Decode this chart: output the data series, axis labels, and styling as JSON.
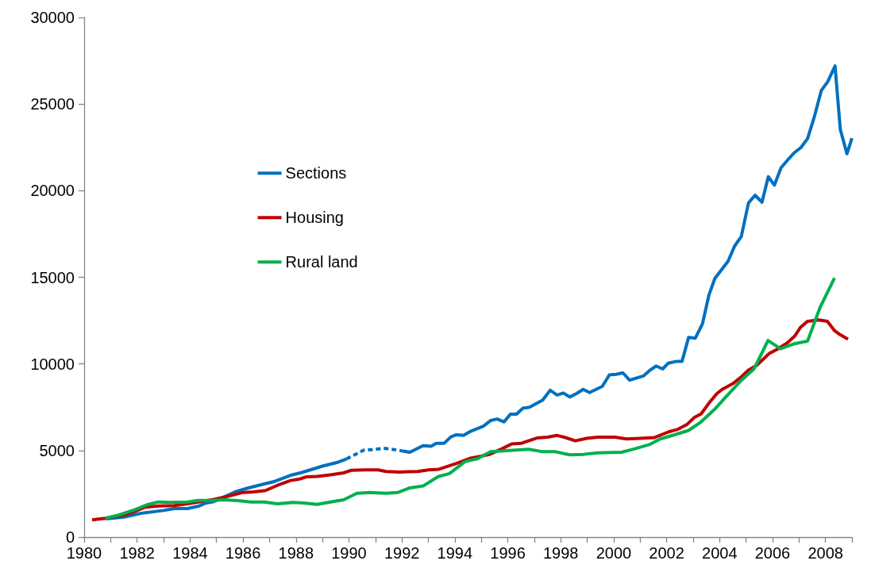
{
  "chart_data": {
    "type": "line",
    "xlim": [
      1980,
      2009
    ],
    "ylim": [
      0,
      30000
    ],
    "xticks": [
      1980,
      {
        "value": 1981,
        "label": null
      },
      1982,
      {
        "value": 1983,
        "label": null
      },
      1984,
      {
        "value": 1985,
        "label": null
      },
      1986,
      {
        "value": 1987,
        "label": null
      },
      1988,
      {
        "value": 1989,
        "label": null
      },
      1990,
      {
        "value": 1991,
        "label": null
      },
      1992,
      {
        "value": 1993,
        "label": null
      },
      1994,
      {
        "value": 1995,
        "label": null
      },
      1996,
      {
        "value": 1997,
        "label": null
      },
      1998,
      {
        "value": 1999,
        "label": null
      },
      2000,
      {
        "value": 2001,
        "label": null
      },
      2002,
      {
        "value": 2003,
        "label": null
      },
      2004,
      {
        "value": 2005,
        "label": null
      },
      2006,
      {
        "value": 2007,
        "label": null
      },
      2008,
      {
        "value": 2009,
        "label": null
      }
    ],
    "yticks": [
      0,
      5000,
      10000,
      15000,
      20000,
      25000,
      30000
    ],
    "grid": false,
    "legend": "top left",
    "marker": "none",
    "series": [
      {
        "name": "Sections",
        "color": "#0070c0",
        "line_style": "solid",
        "x": [
          1980.8,
          1981.5,
          1982.2,
          1983.0,
          1983.4,
          1983.9,
          1984.35,
          1984.6,
          1984.9,
          1985.7,
          1986.2,
          1986.8,
          1987.2,
          1987.8,
          1988.2,
          1989.0,
          1989.6,
          1989.9
        ],
        "values": [
          1050,
          1160,
          1390,
          1540,
          1650,
          1650,
          1800,
          1970,
          2050,
          2610,
          2840,
          3070,
          3220,
          3570,
          3720,
          4100,
          4330,
          4510
        ]
      },
      {
        "color": "#0070c0",
        "line_style": "dashed",
        "x": [
          1989.9,
          1990.2,
          1990.55,
          1990.9,
          1991.3,
          1991.6,
          1992.0
        ],
        "values": [
          4510,
          4740,
          5020,
          5050,
          5130,
          5080,
          4980
        ]
      },
      {
        "color": "#0070c0",
        "line_style": "solid",
        "x": [
          1992.0,
          1992.3,
          1992.8,
          1993.1,
          1993.3,
          1993.6,
          1993.85,
          1994.06,
          1994.33,
          1994.6,
          1995.08,
          1995.35,
          1995.6,
          1995.86,
          1996.1,
          1996.33,
          1996.57,
          1996.82,
          1997.32,
          1997.6,
          1997.86,
          1998.1,
          1998.34,
          1998.6,
          1998.85,
          1999.09,
          1999.57,
          1999.84,
          2000.1,
          2000.35,
          2000.6,
          2001.12,
          2001.34,
          2001.6,
          2001.85,
          2002.06,
          2002.35,
          2002.58,
          2002.83,
          2003.08,
          2003.35,
          2003.6,
          2003.82,
          2004.32,
          2004.57,
          2004.82,
          2005.09,
          2005.34,
          2005.6,
          2005.84,
          2006.07,
          2006.32,
          2006.57,
          2006.82,
          2007.07,
          2007.32,
          2007.57,
          2007.84,
          2008.09,
          2008.36,
          2008.56,
          2008.81,
          2009.0
        ],
        "values": [
          4980,
          4900,
          5280,
          5240,
          5420,
          5420,
          5790,
          5910,
          5870,
          6110,
          6410,
          6730,
          6820,
          6650,
          7100,
          7100,
          7440,
          7500,
          7910,
          8480,
          8200,
          8320,
          8090,
          8290,
          8530,
          8350,
          8700,
          9370,
          9400,
          9480,
          9060,
          9300,
          9600,
          9880,
          9710,
          10040,
          10140,
          10140,
          11530,
          11480,
          12300,
          13990,
          14930,
          15930,
          16810,
          17350,
          19290,
          19740,
          19330,
          20810,
          20320,
          21320,
          21770,
          22190,
          22490,
          23000,
          24220,
          25780,
          26310,
          27200,
          23530,
          22130,
          23030
        ]
      },
      {
        "name": "Housing",
        "color": "#c00000",
        "line_style": "solid",
        "x": [
          1980.3,
          1980.8,
          1981.5,
          1981.9,
          1982.3,
          1982.8,
          1983.4,
          1983.9,
          1984.4,
          1984.9,
          1985.4,
          1986.0,
          1986.4,
          1986.85,
          1987.3,
          1987.8,
          1988.1,
          1988.4,
          1988.8,
          1989.3,
          1989.8,
          1990.1,
          1990.6,
          1991.1,
          1991.4,
          1991.9,
          1992.6,
          1993.0,
          1993.4,
          1994.06,
          1994.6,
          1995.3,
          1995.78,
          1996.15,
          1996.52,
          1997.1,
          1997.5,
          1997.86,
          1998.13,
          1998.55,
          1998.98,
          1999.4,
          2000.05,
          2000.48,
          2001.0,
          2001.55,
          2002.08,
          2002.4,
          2002.78,
          2003.04,
          2003.3,
          2003.63,
          2003.9,
          2004.1,
          2004.5,
          2004.8,
          2005.08,
          2005.4,
          2005.6,
          2005.88,
          2006.15,
          2006.57,
          2006.84,
          2007.05,
          2007.32,
          2007.75,
          2008.07,
          2008.34,
          2008.55,
          2008.85
        ],
        "values": [
          1000,
          1090,
          1270,
          1470,
          1730,
          1800,
          1820,
          1920,
          2050,
          2180,
          2350,
          2580,
          2610,
          2690,
          2990,
          3270,
          3340,
          3480,
          3500,
          3600,
          3710,
          3860,
          3880,
          3880,
          3790,
          3760,
          3790,
          3880,
          3920,
          4250,
          4560,
          4770,
          5100,
          5380,
          5420,
          5720,
          5770,
          5870,
          5770,
          5560,
          5700,
          5770,
          5770,
          5670,
          5700,
          5750,
          6080,
          6210,
          6520,
          6900,
          7110,
          7800,
          8290,
          8530,
          8860,
          9220,
          9630,
          9920,
          10200,
          10610,
          10820,
          11230,
          11610,
          12100,
          12460,
          12540,
          12460,
          11920,
          11690,
          11430
        ]
      },
      {
        "name": "Rural land",
        "color": "#00b050",
        "line_style": "solid",
        "x": [
          1980.8,
          1981.3,
          1981.9,
          1982.4,
          1982.8,
          1983.3,
          1983.9,
          1984.3,
          1984.8,
          1985.3,
          1985.8,
          1986.3,
          1986.8,
          1987.3,
          1987.9,
          1988.3,
          1988.8,
          1989.3,
          1989.8,
          1990.3,
          1990.8,
          1991.4,
          1991.85,
          1992.3,
          1992.8,
          1993.37,
          1993.8,
          1994.38,
          1994.87,
          1995.35,
          1996.2,
          1996.79,
          1997.32,
          1997.8,
          1998.34,
          1998.87,
          1999.4,
          2000.3,
          2000.8,
          2001.34,
          2001.76,
          2002.3,
          2002.83,
          2003.3,
          2003.8,
          2004.33,
          2004.8,
          2005.3,
          2005.83,
          2006.3,
          2006.79,
          2007.32,
          2007.8,
          2008.34
        ],
        "values": [
          1090,
          1270,
          1570,
          1880,
          2030,
          2000,
          2030,
          2120,
          2120,
          2150,
          2110,
          2030,
          2030,
          1920,
          2000,
          1970,
          1890,
          2030,
          2150,
          2530,
          2580,
          2530,
          2580,
          2840,
          2950,
          3490,
          3670,
          4360,
          4530,
          4930,
          5020,
          5070,
          4930,
          4930,
          4750,
          4780,
          4870,
          4900,
          5100,
          5340,
          5670,
          5910,
          6160,
          6650,
          7360,
          8250,
          9020,
          9710,
          11350,
          10870,
          11150,
          11310,
          13280,
          14960
        ]
      }
    ]
  }
}
